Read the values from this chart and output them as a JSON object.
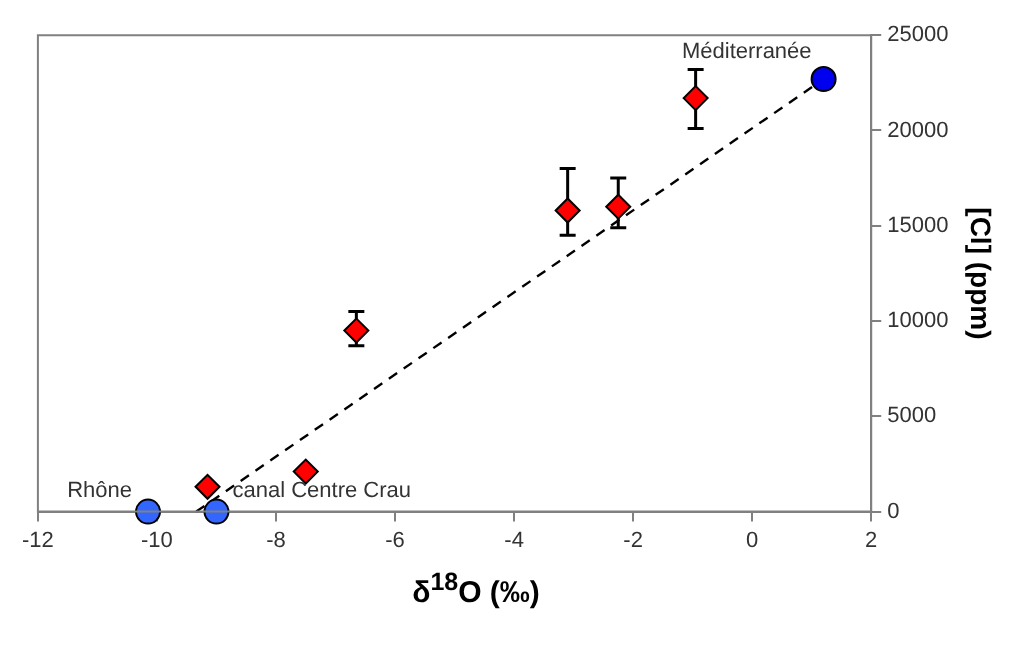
{
  "chart_data": {
    "type": "scatter",
    "xlabel": "δ$^{18}$O (‰)",
    "ylabel": "[Cl] (ppm)",
    "xlim": [
      -12,
      2
    ],
    "xticks": [
      -12,
      -10,
      -8,
      -6,
      -4,
      -2,
      0,
      2
    ],
    "ylim": [
      0,
      25000
    ],
    "yticks": [
      0,
      5000,
      10000,
      15000,
      20000,
      25000
    ],
    "grid": false,
    "legend": false,
    "series": [
      {
        "color": "#ff0000",
        "marker": "diamond",
        "x": [
          -9.15,
          -7.5,
          -6.65,
          -3.1,
          -2.25,
          -0.95
        ],
        "values": [
          1300,
          2100,
          9500,
          15800,
          16000,
          21700
        ],
        "errors": [
          null,
          null,
          [
            8700,
            10500
          ],
          [
            14500,
            18000
          ],
          [
            14900,
            17500
          ],
          [
            20100,
            23200
          ]
        ]
      },
      {
        "color": "#3366ff",
        "marker": "circle",
        "x": [
          -10.15,
          -9.0
        ],
        "values": [
          0,
          0
        ]
      },
      {
        "color": "#0000ee",
        "marker": "circle",
        "x": [
          1.2
        ],
        "values": [
          22700
        ]
      },
      {
        "type": "line",
        "color": "#000000",
        "line_style": "dashed",
        "marker": "none",
        "x": [
          -9.34,
          1.2
        ],
        "values": [
          0,
          22700
        ]
      }
    ],
    "annotations": [
      {
        "text": "Rhône",
        "x": -10.15,
        "y": 0
      },
      {
        "text": "canal Centre Crau",
        "x": -9.0,
        "y": 0
      },
      {
        "text": "Méditerranée",
        "x": 1.2,
        "y": 22700
      }
    ]
  }
}
